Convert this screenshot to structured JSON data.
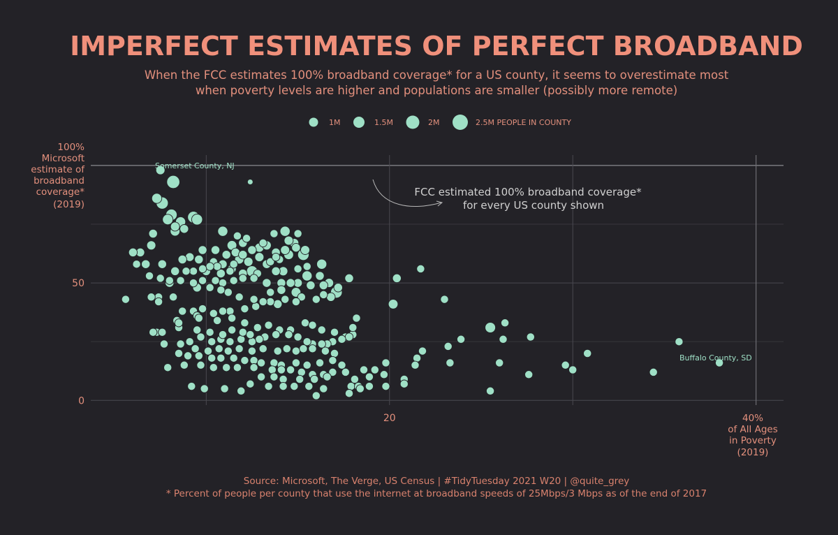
{
  "title": "IMPERFECT ESTIMATES OF PERFECT BROADBAND",
  "subtitle": {
    "line1": "When the FCC estimates 100% broadband coverage* for a US county, it seems to overestimate most",
    "line2": "when poverty levels are higher and populations are smaller (possibly more remote)"
  },
  "caption": {
    "line1": "Source: Microsoft, The Verge, US Census  |  #TidyTuesday 2021 W20  |  @quite_grey",
    "line2": "* Percent of people per county that use the internet at broadband speeds of 25Mbps/3 Mbps as of the end of 2017"
  },
  "colors": {
    "background": "#232227",
    "accent": "#f0907b",
    "points": "#9fe0c6",
    "grid": "#3d3c42"
  },
  "chart_data": {
    "type": "scatter",
    "x_label_lines": [
      "40%",
      "of All Ages",
      "in Poverty",
      "(2019)"
    ],
    "y_label_lines": [
      "100%",
      "Microsoft",
      "estimate of",
      "broadband",
      "coverage*",
      "(2019)"
    ],
    "x_ticks": [
      {
        "value": 20,
        "label": "20"
      }
    ],
    "y_ticks": [
      {
        "value": 50,
        "label": "50"
      },
      {
        "value": 0,
        "label": "0"
      }
    ],
    "xlim": [
      3.7,
      41.5
    ],
    "ylim": [
      -2,
      108
    ],
    "grid": true,
    "legend": {
      "position": "top",
      "entries": [
        {
          "label": "1M",
          "value": 1000000
        },
        {
          "label": "1.5M",
          "value": 1500000
        },
        {
          "label": "2M",
          "value": 2000000
        },
        {
          "label": "2.5M PEOPLE IN COUNTY",
          "value": 2500000
        }
      ]
    },
    "annotations": {
      "fcc_note_line1": "FCC estimated 100% broadband coverage*",
      "fcc_note_line2": "for every US county shown",
      "top_label": "Somerset County, NJ",
      "bottom_label": "Buffalo County, SD"
    },
    "points": [
      [
        7.5,
        98,
        0.6
      ],
      [
        8.2,
        93,
        1.6
      ],
      [
        7.3,
        86,
        0.8
      ],
      [
        7.6,
        84,
        1.3
      ],
      [
        8.1,
        79,
        1.1
      ],
      [
        7.9,
        77,
        0.9
      ],
      [
        9.3,
        78,
        1.2
      ],
      [
        9.5,
        77,
        1.0
      ],
      [
        8.6,
        76,
        0.8
      ],
      [
        8.3,
        74,
        0.6
      ],
      [
        8.8,
        73,
        0.5
      ],
      [
        8.3,
        72,
        0.7
      ],
      [
        7.1,
        71,
        0.5
      ],
      [
        7.0,
        66,
        0.6
      ],
      [
        6.4,
        63,
        0.5
      ],
      [
        6.2,
        58,
        0.4
      ],
      [
        7.6,
        58,
        0.5
      ],
      [
        6.9,
        53,
        0.4
      ],
      [
        7.5,
        52,
        0.4
      ],
      [
        8.0,
        50,
        0.5
      ],
      [
        12.4,
        93,
        0.1
      ],
      [
        10.9,
        72,
        0.8
      ],
      [
        11.7,
        70,
        0.4
      ],
      [
        12.2,
        69,
        0.4
      ],
      [
        13.7,
        71,
        0.4
      ],
      [
        12.0,
        67,
        0.5
      ],
      [
        11.4,
        66,
        0.7
      ],
      [
        12.5,
        64,
        0.5
      ],
      [
        12.9,
        65,
        0.6
      ],
      [
        11.6,
        63,
        0.5
      ],
      [
        11.1,
        62,
        0.5
      ],
      [
        12.0,
        62,
        0.5
      ],
      [
        9.1,
        61,
        0.5
      ],
      [
        9.6,
        60,
        0.5
      ],
      [
        8.7,
        60,
        0.5
      ],
      [
        10.4,
        59,
        0.4
      ],
      [
        10.9,
        58,
        0.5
      ],
      [
        12.3,
        59,
        0.6
      ],
      [
        11.5,
        58,
        0.4
      ],
      [
        10.6,
        57,
        0.4
      ],
      [
        10.2,
        57,
        0.4
      ],
      [
        9.8,
        56,
        0.4
      ],
      [
        9.3,
        55,
        0.4
      ],
      [
        8.9,
        55,
        0.4
      ],
      [
        10.0,
        55,
        0.5
      ],
      [
        11.3,
        55,
        0.4
      ],
      [
        12.0,
        54,
        0.5
      ],
      [
        12.8,
        54,
        0.4
      ],
      [
        13.8,
        55,
        0.5
      ],
      [
        14.2,
        55,
        0.6
      ],
      [
        15.0,
        56,
        0.4
      ],
      [
        15.5,
        57,
        0.4
      ],
      [
        16.3,
        58,
        0.8
      ],
      [
        13.5,
        59,
        0.4
      ],
      [
        14.0,
        60,
        0.4
      ],
      [
        14.5,
        62,
        0.7
      ],
      [
        13.8,
        61,
        0.4
      ],
      [
        15.3,
        62,
        1.1
      ],
      [
        15.4,
        64,
        0.6
      ],
      [
        14.9,
        65,
        0.5
      ],
      [
        14.8,
        67,
        0.6
      ],
      [
        14.5,
        68,
        0.6
      ],
      [
        15.0,
        71,
        0.4
      ],
      [
        14.3,
        72,
        0.8
      ],
      [
        13.3,
        66,
        0.6
      ],
      [
        14.3,
        64,
        0.6
      ],
      [
        16.2,
        53,
        0.5
      ],
      [
        17.8,
        52,
        0.5
      ],
      [
        16.4,
        45,
        0.4
      ],
      [
        16.8,
        44,
        0.5
      ],
      [
        15.7,
        49,
        0.5
      ],
      [
        16.4,
        49,
        0.5
      ],
      [
        15.0,
        50,
        0.5
      ],
      [
        14.6,
        50,
        0.5
      ],
      [
        14.1,
        50,
        0.5
      ],
      [
        13.3,
        50,
        0.5
      ],
      [
        12.6,
        52,
        0.4
      ],
      [
        12.0,
        52,
        0.4
      ],
      [
        11.5,
        51,
        0.4
      ],
      [
        10.9,
        50,
        0.4
      ],
      [
        10.5,
        51,
        0.4
      ],
      [
        9.8,
        51,
        0.4
      ],
      [
        9.3,
        50,
        0.4
      ],
      [
        8.6,
        51,
        0.4
      ],
      [
        8.0,
        51,
        0.4
      ],
      [
        15.5,
        53,
        0.8
      ],
      [
        14.9,
        46,
        0.7
      ],
      [
        16.7,
        50,
        0.6
      ],
      [
        17.2,
        48,
        0.5
      ],
      [
        17.1,
        46,
        1.2
      ],
      [
        16.0,
        43,
        0.4
      ],
      [
        15.2,
        44,
        0.4
      ],
      [
        14.9,
        42,
        0.4
      ],
      [
        14.3,
        43,
        0.4
      ],
      [
        13.9,
        41,
        0.5
      ],
      [
        13.5,
        42,
        0.4
      ],
      [
        13.1,
        42,
        0.4
      ],
      [
        12.7,
        40,
        0.4
      ],
      [
        12.1,
        39,
        0.4
      ],
      [
        11.3,
        38,
        0.4
      ],
      [
        10.9,
        38,
        0.4
      ],
      [
        10.4,
        37,
        0.4
      ],
      [
        9.8,
        39,
        0.4
      ],
      [
        9.3,
        38,
        0.4
      ],
      [
        8.7,
        38,
        0.4
      ],
      [
        8.2,
        44,
        0.4
      ],
      [
        7.4,
        44,
        0.4
      ],
      [
        7.0,
        44,
        0.4
      ],
      [
        7.4,
        42,
        0.4
      ],
      [
        8.4,
        34,
        0.4
      ],
      [
        8.5,
        31,
        0.4
      ],
      [
        9.5,
        36,
        0.4
      ],
      [
        9.6,
        35,
        0.4
      ],
      [
        10.6,
        34,
        0.4
      ],
      [
        11.4,
        35,
        0.4
      ],
      [
        12.1,
        33,
        0.4
      ],
      [
        12.8,
        31,
        0.4
      ],
      [
        13.4,
        32,
        0.4
      ],
      [
        14.0,
        30,
        0.4
      ],
      [
        14.6,
        30,
        0.4
      ],
      [
        15.4,
        33,
        0.4
      ],
      [
        15.8,
        32,
        0.4
      ],
      [
        16.3,
        30,
        0.4
      ],
      [
        17.0,
        29,
        0.4
      ],
      [
        17.6,
        27,
        0.4
      ],
      [
        18.0,
        28,
        0.4
      ],
      [
        18.2,
        35,
        0.4
      ],
      [
        18.0,
        31,
        0.4
      ],
      [
        17.8,
        27,
        0.4
      ],
      [
        17.4,
        26,
        0.4
      ],
      [
        16.9,
        25,
        0.4
      ],
      [
        16.6,
        24,
        0.4
      ],
      [
        16.3,
        24,
        0.4
      ],
      [
        15.8,
        24,
        0.4
      ],
      [
        15.5,
        25,
        0.4
      ],
      [
        15.0,
        27,
        0.4
      ],
      [
        14.5,
        28,
        0.4
      ],
      [
        13.8,
        28,
        0.4
      ],
      [
        13.2,
        27,
        0.4
      ],
      [
        12.9,
        26,
        0.4
      ],
      [
        12.5,
        25,
        0.4
      ],
      [
        11.9,
        26,
        0.4
      ],
      [
        11.3,
        25,
        0.4
      ],
      [
        10.8,
        26,
        0.4
      ],
      [
        10.3,
        25,
        0.4
      ],
      [
        9.7,
        27,
        0.4
      ],
      [
        9.1,
        25,
        0.4
      ],
      [
        8.6,
        24,
        0.4
      ],
      [
        7.7,
        24,
        0.4
      ],
      [
        7.3,
        29,
        0.4
      ],
      [
        7.6,
        29,
        0.4
      ],
      [
        9.5,
        30,
        0.4
      ],
      [
        10.2,
        29,
        0.4
      ],
      [
        10.9,
        28,
        0.4
      ],
      [
        11.4,
        30,
        0.4
      ],
      [
        12.0,
        29,
        0.4
      ],
      [
        12.4,
        28,
        0.4
      ],
      [
        9.4,
        22,
        0.4
      ],
      [
        10.1,
        21,
        0.4
      ],
      [
        10.7,
        22,
        0.4
      ],
      [
        11.2,
        21,
        0.4
      ],
      [
        11.8,
        22,
        0.4
      ],
      [
        12.5,
        21,
        0.4
      ],
      [
        13.1,
        22,
        0.4
      ],
      [
        13.9,
        21,
        0.4
      ],
      [
        14.4,
        22,
        0.4
      ],
      [
        14.9,
        21,
        0.4
      ],
      [
        15.3,
        22,
        0.4
      ],
      [
        15.8,
        22,
        0.4
      ],
      [
        16.5,
        21,
        0.4
      ],
      [
        17.0,
        20,
        0.4
      ],
      [
        8.5,
        20,
        0.4
      ],
      [
        9.0,
        19,
        0.4
      ],
      [
        9.6,
        19,
        0.4
      ],
      [
        10.3,
        18,
        0.4
      ],
      [
        10.8,
        18,
        0.4
      ],
      [
        11.5,
        18,
        0.4
      ],
      [
        12.1,
        17,
        0.4
      ],
      [
        12.6,
        17,
        0.4
      ],
      [
        13.0,
        16,
        0.4
      ],
      [
        13.7,
        16,
        0.4
      ],
      [
        14.1,
        15,
        0.4
      ],
      [
        14.9,
        16,
        0.4
      ],
      [
        15.5,
        15,
        0.4
      ],
      [
        16.2,
        16,
        0.4
      ],
      [
        16.9,
        17,
        0.4
      ],
      [
        17.4,
        15,
        0.4
      ],
      [
        7.9,
        14,
        0.4
      ],
      [
        8.8,
        15,
        0.4
      ],
      [
        9.7,
        15,
        0.4
      ],
      [
        10.4,
        14,
        0.4
      ],
      [
        11.1,
        14,
        0.4
      ],
      [
        11.7,
        14,
        0.4
      ],
      [
        12.6,
        14,
        0.4
      ],
      [
        13.6,
        13,
        0.4
      ],
      [
        14.1,
        13,
        0.4
      ],
      [
        14.6,
        13,
        0.4
      ],
      [
        15.2,
        12,
        0.4
      ],
      [
        15.8,
        11,
        0.4
      ],
      [
        16.4,
        11,
        0.4
      ],
      [
        16.9,
        12,
        0.4
      ],
      [
        17.6,
        12,
        0.4
      ],
      [
        13.0,
        10,
        0.4
      ],
      [
        13.7,
        10,
        0.4
      ],
      [
        14.2,
        9,
        0.4
      ],
      [
        15.1,
        9,
        0.4
      ],
      [
        15.9,
        9,
        0.4
      ],
      [
        16.6,
        10,
        0.4
      ],
      [
        12.4,
        7,
        0.4
      ],
      [
        13.4,
        6,
        0.4
      ],
      [
        14.2,
        6,
        0.4
      ],
      [
        14.8,
        6,
        0.4
      ],
      [
        15.6,
        6,
        0.4
      ],
      [
        16.4,
        5,
        0.4
      ],
      [
        11.0,
        5,
        0.4
      ],
      [
        11.9,
        4,
        0.4
      ],
      [
        9.2,
        6,
        0.4
      ],
      [
        9.9,
        5,
        0.4
      ],
      [
        17.9,
        6,
        0.4
      ],
      [
        18.3,
        6,
        0.4
      ],
      [
        18.9,
        6,
        0.4
      ],
      [
        19.8,
        6,
        0.4
      ],
      [
        18.1,
        9,
        0.4
      ],
      [
        18.9,
        10,
        0.4
      ],
      [
        19.7,
        11,
        0.4
      ],
      [
        18.6,
        13,
        0.4
      ],
      [
        19.2,
        13,
        0.4
      ],
      [
        19.8,
        16,
        0.4
      ],
      [
        17.8,
        3,
        0.4
      ],
      [
        18.4,
        5,
        0.4
      ],
      [
        16.0,
        2,
        0.4
      ],
      [
        20.4,
        52,
        0.5
      ],
      [
        20.2,
        41,
        0.7
      ],
      [
        21.7,
        56,
        0.4
      ],
      [
        23.0,
        43,
        0.4
      ],
      [
        21.5,
        18,
        0.4
      ],
      [
        21.8,
        21,
        0.4
      ],
      [
        21.4,
        15,
        0.4
      ],
      [
        20.8,
        9,
        0.4
      ],
      [
        20.8,
        7,
        0.4
      ],
      [
        23.2,
        23,
        0.4
      ],
      [
        23.3,
        16,
        0.4
      ],
      [
        23.9,
        26,
        0.4
      ],
      [
        25.5,
        31,
        0.9
      ],
      [
        26.2,
        26,
        0.4
      ],
      [
        26.3,
        33,
        0.4
      ],
      [
        26.0,
        16,
        0.4
      ],
      [
        25.5,
        4,
        0.4
      ],
      [
        27.7,
        27,
        0.4
      ],
      [
        27.6,
        11,
        0.4
      ],
      [
        29.6,
        15,
        0.4
      ],
      [
        30.0,
        13,
        0.4
      ],
      [
        30.8,
        20,
        0.4
      ],
      [
        34.4,
        12,
        0.4
      ],
      [
        35.8,
        25,
        0.4
      ],
      [
        38.0,
        16,
        0.4
      ],
      [
        5.6,
        43,
        0.4
      ],
      [
        6.0,
        63,
        0.5
      ],
      [
        6.7,
        58,
        0.5
      ],
      [
        8.5,
        33,
        0.4
      ],
      [
        7.1,
        29,
        0.4
      ],
      [
        8.3,
        55,
        0.5
      ],
      [
        11.2,
        46,
        0.4
      ],
      [
        11.8,
        44,
        0.4
      ],
      [
        12.6,
        43,
        0.4
      ],
      [
        13.5,
        46,
        0.4
      ],
      [
        14.1,
        47,
        0.5
      ],
      [
        9.5,
        48,
        0.5
      ],
      [
        10.2,
        48,
        0.4
      ],
      [
        10.8,
        47,
        0.4
      ],
      [
        10.8,
        54,
        0.5
      ],
      [
        11.4,
        56,
        0.5
      ],
      [
        12.5,
        55,
        1.0
      ],
      [
        13.3,
        58,
        0.5
      ],
      [
        11.8,
        60,
        0.6
      ],
      [
        12.9,
        61,
        0.6
      ],
      [
        13.8,
        63,
        0.5
      ],
      [
        13.1,
        67,
        0.4
      ],
      [
        10.5,
        64,
        0.5
      ],
      [
        9.8,
        64,
        0.5
      ]
    ]
  }
}
